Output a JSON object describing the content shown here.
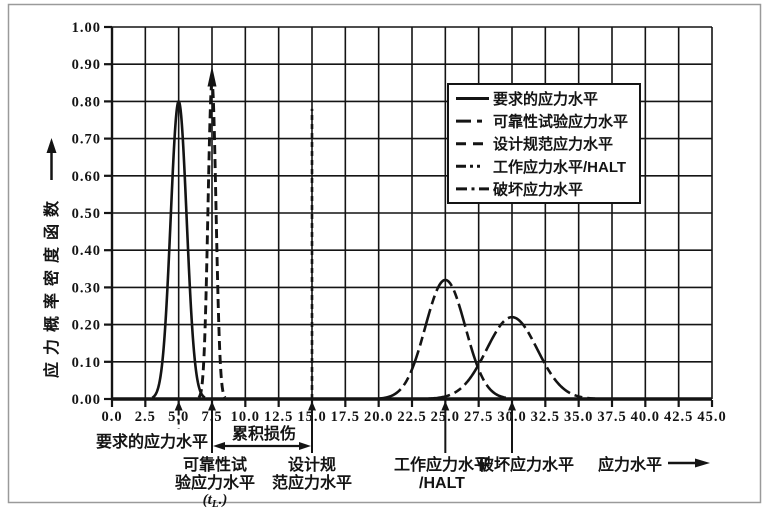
{
  "figure": {
    "background": "#ffffff",
    "border_color": "#9a9a9a",
    "ink_color": "#141414"
  },
  "chart_data": {
    "type": "line",
    "title": "",
    "xlabel": "应力水平",
    "ylabel": "应力概率密度函数",
    "xlim": [
      0,
      45
    ],
    "ylim": [
      0,
      1
    ],
    "x_tick_step": 2.5,
    "y_tick_step": 0.1,
    "x_tick_labels": [
      "0.0",
      "2.5",
      "5.0",
      "7.5",
      "10.0",
      "12.5",
      "15.0",
      "17.5",
      "20.0",
      "22.5",
      "25.0",
      "27.5",
      "30.0",
      "32.5",
      "35.0",
      "37.5",
      "40.0",
      "42.5",
      "45.0"
    ],
    "y_tick_labels": [
      "0.00",
      "0.10",
      "0.20",
      "0.30",
      "0.40",
      "0.50",
      "0.60",
      "0.70",
      "0.80",
      "0.90",
      "1.00"
    ],
    "grid": true,
    "legend_position": "upper-right",
    "series": [
      {
        "label": "要求的应力水平",
        "shape": "gaussian",
        "style": "solid",
        "mean": 5,
        "sigma": 0.6,
        "peak": 0.8
      },
      {
        "label": "可靠性试验应力水平",
        "shape": "gaussian-spike",
        "style": "long-dash-short-dash",
        "mean": 7.5,
        "sigma": 0.3,
        "peak": 0.88,
        "arrow_top": true
      },
      {
        "label": "设计规范应力水平",
        "shape": "vertical-line",
        "style": "dashed",
        "mean": 15,
        "sigma": 0,
        "peak": 0.78
      },
      {
        "label": "工作应力水平/HALT",
        "shape": "gaussian",
        "style": "dash-dot-dot",
        "mean": 25,
        "sigma": 1.5,
        "peak": 0.32
      },
      {
        "label": "破坏应力水平",
        "shape": "gaussian",
        "style": "dash-dot",
        "mean": 30,
        "sigma": 1.9,
        "peak": 0.22
      }
    ],
    "annotations": {
      "required": {
        "x": 5,
        "label": "要求的应力水平"
      },
      "reliability": {
        "x": 7.5,
        "lines": [
          "可靠性试",
          "验应力水平"
        ],
        "sub": {
          "pre": "(t",
          "sub": "L",
          "post": ".)"
        }
      },
      "cumulative_damage": {
        "from": 7.5,
        "to": 15,
        "label": "累积损伤"
      },
      "design_spec": {
        "x": 15,
        "lines": [
          "设计规",
          "范应力水平"
        ]
      },
      "working": {
        "x": 25,
        "lines": [
          "工作应力水平",
          "/HALT"
        ]
      },
      "destruction": {
        "x": 30,
        "label": "破坏应力水平"
      },
      "x_axis_arrow_label": "应力水平"
    }
  }
}
